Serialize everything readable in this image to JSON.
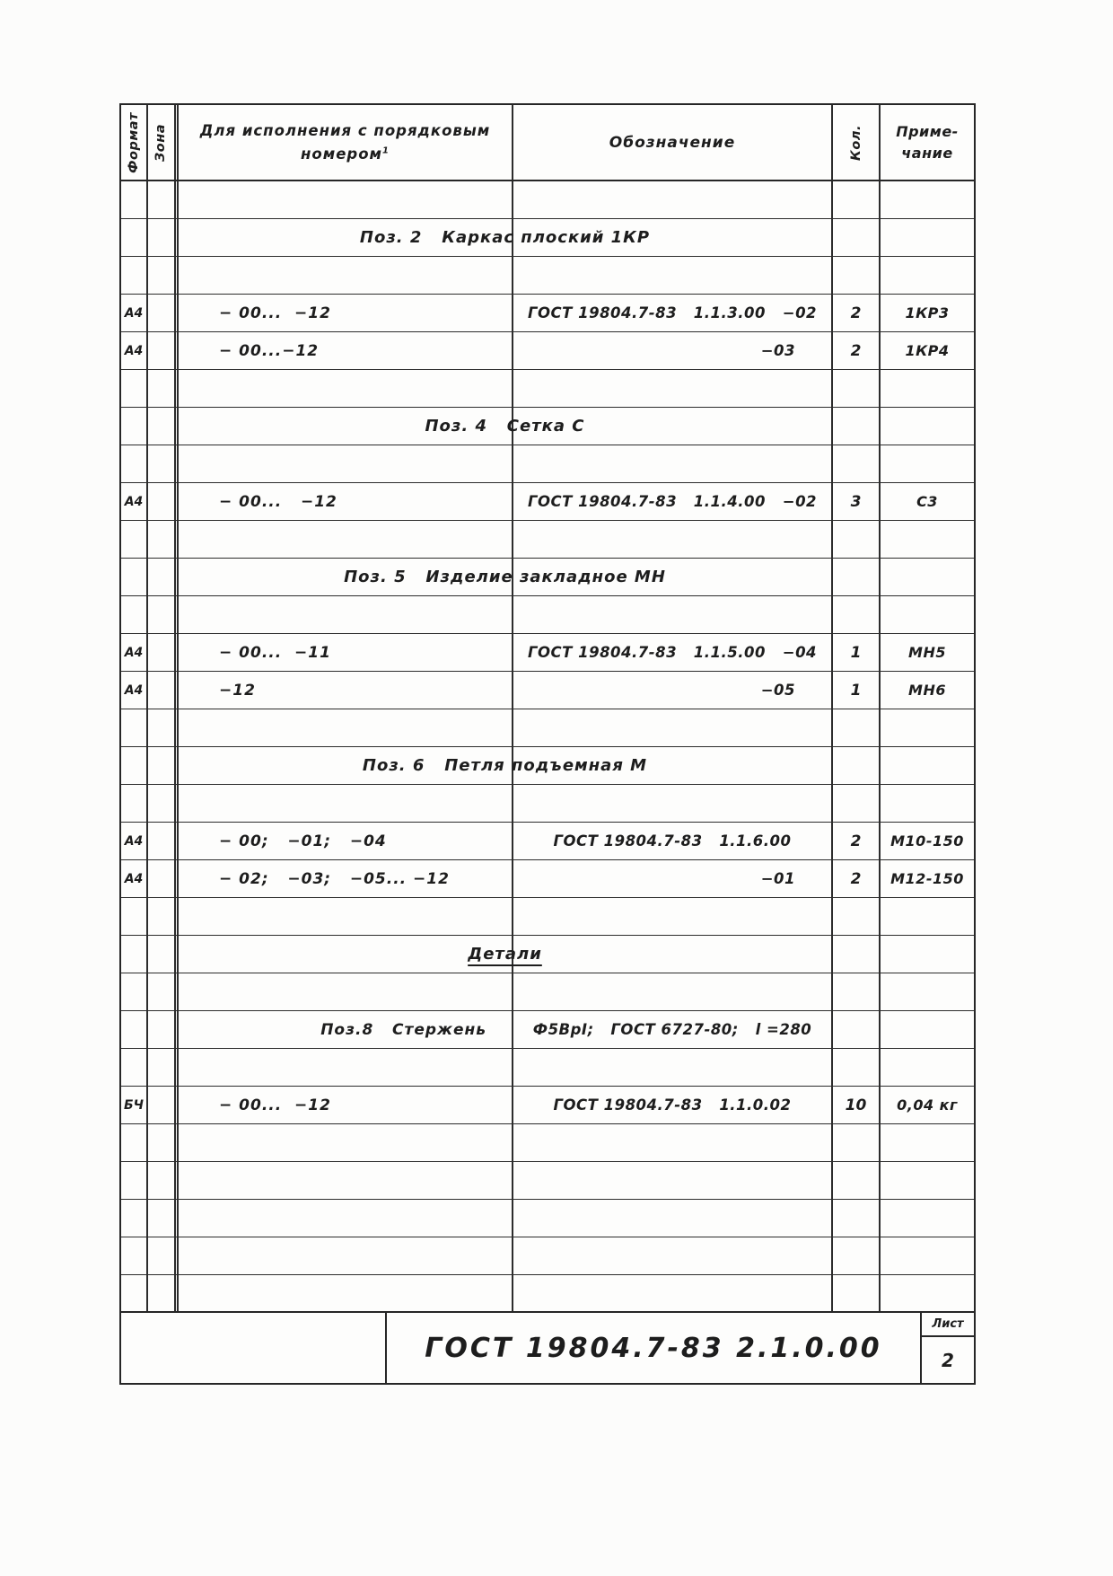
{
  "table": {
    "headers": {
      "format": "Формат",
      "zone": "Зона",
      "execution": "Для исполнения с порядковым",
      "execution_line2": "номером",
      "execution_footnote": "1",
      "designation": "Обозначение",
      "quantity": "Кол.",
      "note_line1": "Приме-",
      "note_line2": "чание"
    },
    "rows": [
      {
        "type": "empty"
      },
      {
        "type": "section",
        "text": "Поз. 2   Каркас плоский 1КР"
      },
      {
        "type": "empty"
      },
      {
        "type": "data",
        "format": "А4",
        "execution": "− 00...  −12",
        "designation": "ГОСТ 19804.7-83   1.1.3.00   −02",
        "designation_align": "center",
        "qty": "2",
        "note": "1КР3"
      },
      {
        "type": "data",
        "format": "А4",
        "execution": "− 00...−12",
        "designation": "−03",
        "designation_align": "right",
        "qty": "2",
        "note": "1КР4"
      },
      {
        "type": "empty"
      },
      {
        "type": "section",
        "text": "Поз. 4   Сетка С"
      },
      {
        "type": "empty"
      },
      {
        "type": "data",
        "format": "А4",
        "execution": "− 00...   −12",
        "designation": "ГОСТ 19804.7-83   1.1.4.00   −02",
        "designation_align": "center",
        "qty": "3",
        "note": "С3"
      },
      {
        "type": "empty"
      },
      {
        "type": "section",
        "text": "Поз. 5   Изделие закладное МН"
      },
      {
        "type": "empty"
      },
      {
        "type": "data",
        "format": "А4",
        "execution": "− 00...  −11",
        "designation": "ГОСТ 19804.7-83   1.1.5.00   −04",
        "designation_align": "center",
        "qty": "1",
        "note": "МН5"
      },
      {
        "type": "data",
        "format": "А4",
        "execution": "−12",
        "designation": "−05",
        "designation_align": "right",
        "qty": "1",
        "note": "МН6"
      },
      {
        "type": "empty"
      },
      {
        "type": "section",
        "text": "Поз. 6   Петля подъемная М"
      },
      {
        "type": "empty"
      },
      {
        "type": "data",
        "format": "А4",
        "execution": "− 00;   −01;   −04",
        "designation": "ГОСТ 19804.7-83   1.1.6.00",
        "designation_align": "center",
        "qty": "2",
        "note": "М10-150"
      },
      {
        "type": "data",
        "format": "А4",
        "execution": "− 02;   −03;   −05... −12",
        "designation": "−01",
        "designation_align": "right",
        "qty": "2",
        "note": "М12-150"
      },
      {
        "type": "empty"
      },
      {
        "type": "section",
        "text": "Детали",
        "underline": true
      },
      {
        "type": "empty"
      },
      {
        "type": "detail",
        "execution": "Поз.8   Стержень",
        "designation": "Ф5ВрI;   ГОСТ 6727-80;   l =280"
      },
      {
        "type": "empty"
      },
      {
        "type": "data",
        "format": "БЧ",
        "execution": "− 00...  −12",
        "designation": "ГОСТ 19804.7-83   1.1.0.02",
        "designation_align": "center",
        "qty": "10",
        "note": "0,04 кг"
      },
      {
        "type": "empty"
      },
      {
        "type": "empty"
      },
      {
        "type": "empty"
      },
      {
        "type": "empty"
      },
      {
        "type": "empty"
      }
    ]
  },
  "footer": {
    "designation": "ГОСТ 19804.7-83   2.1.0.00",
    "sheet_label": "Лист",
    "sheet_number": "2"
  }
}
